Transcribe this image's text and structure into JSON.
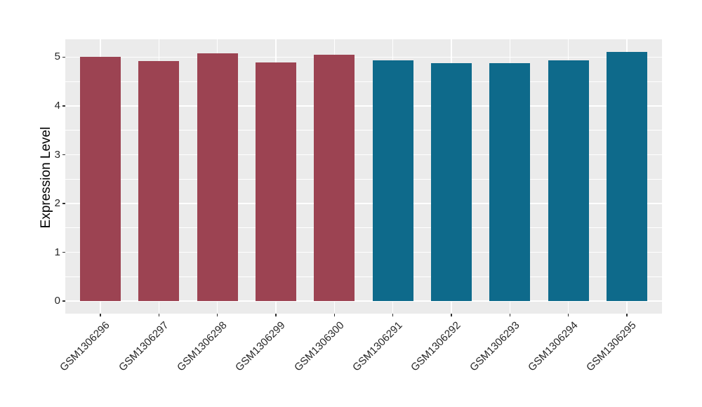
{
  "chart_data": {
    "type": "bar",
    "title": "",
    "xlabel": "",
    "ylabel": "Expression Level",
    "categories": [
      "GSM1306296",
      "GSM1306297",
      "GSM1306298",
      "GSM1306299",
      "GSM1306300",
      "GSM1306291",
      "GSM1306292",
      "GSM1306293",
      "GSM1306294",
      "GSM1306295"
    ],
    "values": [
      5.01,
      4.92,
      5.08,
      4.89,
      5.05,
      4.94,
      4.87,
      4.88,
      4.93,
      5.11
    ],
    "bar_colors": [
      "#9C4352",
      "#9C4352",
      "#9C4352",
      "#9C4352",
      "#9C4352",
      "#0E6A8B",
      "#0E6A8B",
      "#0E6A8B",
      "#0E6A8B",
      "#0E6A8B"
    ],
    "yticks": [
      0,
      1,
      2,
      3,
      4,
      5
    ],
    "ytick_labels": [
      "0",
      "1",
      "2",
      "3",
      "4",
      "5"
    ],
    "yticks_minor": [
      0.5,
      1.5,
      2.5,
      3.5,
      4.5
    ],
    "ylim": [
      -0.2555,
      5.3655
    ],
    "xlim": [
      0.4,
      10.6
    ],
    "bar_width_ratio": 0.7,
    "grid": true,
    "legend": false,
    "panel_background": "#EBEBEB",
    "grid_color": "#FFFFFF",
    "axis_text_color": "#262626",
    "tick_color": "#333333",
    "figure_background": "#FFFFFF"
  }
}
